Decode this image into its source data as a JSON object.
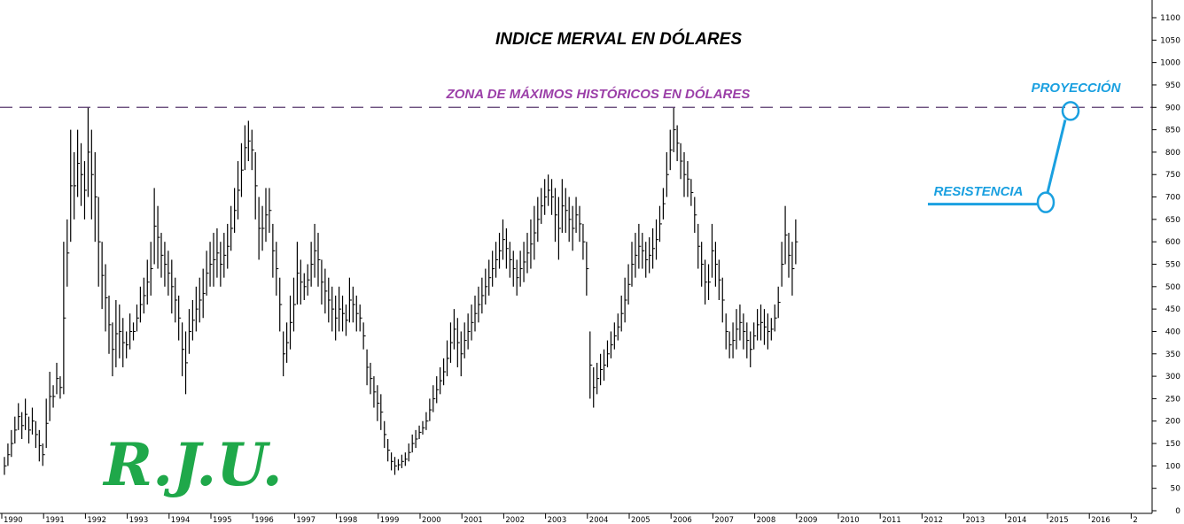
{
  "chart_data": {
    "type": "ohlc",
    "title": "INDICE MERVAL EN DÓLARES",
    "xlabel": "",
    "ylabel": "",
    "ylim": [
      0,
      1150
    ],
    "yticks": [
      0,
      50,
      100,
      150,
      200,
      250,
      300,
      350,
      400,
      450,
      500,
      550,
      600,
      650,
      700,
      750,
      800,
      850,
      900,
      950,
      1000,
      1050,
      1100
    ],
    "xticks": [
      "1990",
      "1991",
      "1992",
      "1993",
      "1994",
      "1995",
      "1996",
      "1997",
      "1998",
      "1999",
      "2000",
      "2001",
      "2002",
      "2003",
      "2004",
      "2005",
      "2006",
      "2007",
      "2008",
      "2009",
      "2010",
      "2011",
      "2012",
      "2013",
      "2014",
      "2015",
      "2016",
      "2"
    ],
    "x_start_year": 1990,
    "bars_per_year": 12,
    "series": [
      {
        "values": [
          [
            120,
            80
          ],
          [
            150,
            100
          ],
          [
            180,
            120
          ],
          [
            210,
            150
          ],
          [
            240,
            180
          ],
          [
            220,
            160
          ],
          [
            250,
            180
          ],
          [
            210,
            150
          ],
          [
            230,
            170
          ],
          [
            200,
            140
          ],
          [
            180,
            110
          ],
          [
            150,
            100
          ],
          [
            250,
            140
          ],
          [
            310,
            200
          ],
          [
            280,
            230
          ],
          [
            330,
            260
          ],
          [
            300,
            250
          ],
          [
            600,
            260
          ],
          [
            650,
            500
          ],
          [
            850,
            600
          ],
          [
            800,
            650
          ],
          [
            850,
            700
          ],
          [
            820,
            680
          ],
          [
            780,
            650
          ],
          [
            900,
            700
          ],
          [
            850,
            650
          ],
          [
            800,
            600
          ],
          [
            700,
            500
          ],
          [
            600,
            450
          ],
          [
            550,
            400
          ],
          [
            480,
            350
          ],
          [
            420,
            300
          ],
          [
            470,
            320
          ],
          [
            460,
            340
          ],
          [
            430,
            320
          ],
          [
            400,
            340
          ],
          [
            440,
            360
          ],
          [
            420,
            380
          ],
          [
            460,
            400
          ],
          [
            500,
            420
          ],
          [
            520,
            440
          ],
          [
            560,
            460
          ],
          [
            600,
            480
          ],
          [
            720,
            550
          ],
          [
            680,
            540
          ],
          [
            620,
            520
          ],
          [
            600,
            500
          ],
          [
            580,
            480
          ],
          [
            560,
            440
          ],
          [
            520,
            420
          ],
          [
            480,
            380
          ],
          [
            420,
            300
          ],
          [
            400,
            260
          ],
          [
            450,
            350
          ],
          [
            470,
            380
          ],
          [
            500,
            400
          ],
          [
            520,
            420
          ],
          [
            540,
            430
          ],
          [
            580,
            480
          ],
          [
            600,
            500
          ],
          [
            620,
            500
          ],
          [
            630,
            520
          ],
          [
            600,
            500
          ],
          [
            620,
            520
          ],
          [
            640,
            540
          ],
          [
            680,
            580
          ],
          [
            720,
            620
          ],
          [
            780,
            650
          ],
          [
            820,
            700
          ],
          [
            860,
            760
          ],
          [
            870,
            780
          ],
          [
            850,
            760
          ],
          [
            800,
            650
          ],
          [
            700,
            560
          ],
          [
            680,
            580
          ],
          [
            720,
            600
          ],
          [
            720,
            620
          ],
          [
            640,
            520
          ],
          [
            600,
            480
          ],
          [
            520,
            400
          ],
          [
            400,
            300
          ],
          [
            420,
            330
          ],
          [
            480,
            360
          ],
          [
            520,
            400
          ],
          [
            600,
            460
          ],
          [
            560,
            460
          ],
          [
            530,
            470
          ],
          [
            550,
            480
          ],
          [
            600,
            500
          ],
          [
            640,
            520
          ],
          [
            620,
            500
          ],
          [
            560,
            460
          ],
          [
            540,
            440
          ],
          [
            520,
            420
          ],
          [
            500,
            400
          ],
          [
            480,
            380
          ],
          [
            500,
            400
          ],
          [
            480,
            400
          ],
          [
            460,
            390
          ],
          [
            520,
            420
          ],
          [
            500,
            420
          ],
          [
            480,
            400
          ],
          [
            460,
            400
          ],
          [
            420,
            360
          ],
          [
            360,
            280
          ],
          [
            330,
            260
          ],
          [
            300,
            230
          ],
          [
            280,
            200
          ],
          [
            260,
            180
          ],
          [
            200,
            140
          ],
          [
            160,
            110
          ],
          [
            130,
            90
          ],
          [
            120,
            80
          ],
          [
            115,
            90
          ],
          [
            125,
            95
          ],
          [
            130,
            100
          ],
          [
            150,
            110
          ],
          [
            170,
            130
          ],
          [
            180,
            140
          ],
          [
            190,
            160
          ],
          [
            200,
            170
          ],
          [
            220,
            180
          ],
          [
            250,
            200
          ],
          [
            280,
            220
          ],
          [
            300,
            240
          ],
          [
            320,
            260
          ],
          [
            340,
            280
          ],
          [
            380,
            300
          ],
          [
            420,
            330
          ],
          [
            450,
            360
          ],
          [
            430,
            320
          ],
          [
            400,
            300
          ],
          [
            420,
            340
          ],
          [
            440,
            360
          ],
          [
            460,
            380
          ],
          [
            480,
            400
          ],
          [
            500,
            420
          ],
          [
            520,
            440
          ],
          [
            540,
            460
          ],
          [
            560,
            480
          ],
          [
            580,
            500
          ],
          [
            600,
            520
          ],
          [
            620,
            540
          ],
          [
            650,
            560
          ],
          [
            630,
            540
          ],
          [
            600,
            520
          ],
          [
            580,
            500
          ],
          [
            560,
            480
          ],
          [
            580,
            500
          ],
          [
            600,
            510
          ],
          [
            620,
            530
          ],
          [
            650,
            540
          ],
          [
            680,
            560
          ],
          [
            700,
            600
          ],
          [
            720,
            640
          ],
          [
            740,
            660
          ],
          [
            750,
            680
          ],
          [
            740,
            660
          ],
          [
            720,
            600
          ],
          [
            700,
            560
          ],
          [
            740,
            620
          ],
          [
            720,
            620
          ],
          [
            700,
            600
          ],
          [
            680,
            580
          ],
          [
            700,
            620
          ],
          [
            680,
            600
          ],
          [
            640,
            560
          ],
          [
            600,
            480
          ],
          [
            400,
            250
          ],
          [
            320,
            230
          ],
          [
            330,
            260
          ],
          [
            350,
            280
          ],
          [
            360,
            290
          ],
          [
            380,
            320
          ],
          [
            400,
            340
          ],
          [
            420,
            360
          ],
          [
            440,
            380
          ],
          [
            480,
            400
          ],
          [
            520,
            420
          ],
          [
            550,
            460
          ],
          [
            600,
            500
          ],
          [
            620,
            520
          ],
          [
            640,
            540
          ],
          [
            620,
            540
          ],
          [
            600,
            520
          ],
          [
            610,
            530
          ],
          [
            630,
            540
          ],
          [
            650,
            560
          ],
          [
            680,
            600
          ],
          [
            720,
            650
          ],
          [
            800,
            700
          ],
          [
            850,
            760
          ],
          [
            900,
            800
          ],
          [
            860,
            780
          ],
          [
            820,
            740
          ],
          [
            800,
            700
          ],
          [
            780,
            700
          ],
          [
            740,
            680
          ],
          [
            700,
            620
          ],
          [
            640,
            540
          ],
          [
            600,
            500
          ],
          [
            560,
            460
          ],
          [
            550,
            470
          ],
          [
            640,
            520
          ],
          [
            600,
            500
          ],
          [
            560,
            470
          ],
          [
            520,
            420
          ],
          [
            440,
            360
          ],
          [
            400,
            340
          ],
          [
            420,
            340
          ],
          [
            450,
            360
          ],
          [
            460,
            380
          ],
          [
            440,
            360
          ],
          [
            420,
            340
          ],
          [
            400,
            320
          ],
          [
            420,
            360
          ],
          [
            450,
            380
          ],
          [
            460,
            380
          ],
          [
            450,
            370
          ],
          [
            440,
            360
          ],
          [
            430,
            380
          ],
          [
            460,
            400
          ],
          [
            500,
            430
          ],
          [
            600,
            500
          ],
          [
            680,
            550
          ],
          [
            620,
            520
          ],
          [
            600,
            480
          ],
          [
            650,
            550
          ]
        ]
      }
    ],
    "annotations": {
      "max_zone_label": "ZONA DE MÁXIMOS HISTÓRICOS EN DÓLARES",
      "max_zone_level": 900,
      "resistance_label": "RESISTENCIA",
      "resistance_level": 688,
      "projection_label": "PROYECCIÓN",
      "projection_target": 888
    },
    "grid": false,
    "legend": "none",
    "colors": {
      "bars": "#000000",
      "max_zone": "#5a3a6e",
      "annotation_blue": "#1aa0e0",
      "max_label": "#9b3fa8",
      "logo": "#1fa84a"
    }
  },
  "watermark": "R.J.U."
}
